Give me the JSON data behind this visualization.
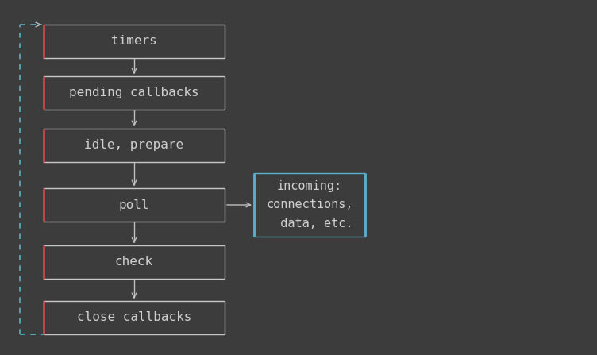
{
  "background_color": "#3c3c3c",
  "box_labels": [
    "timers",
    "pending callbacks",
    "idle, prepare",
    "poll",
    "check",
    "close callbacks"
  ],
  "box_edge_color": "#c8c8c8",
  "box_edge_color_left": "#cc4444",
  "box_facecolor": "#3c3c3c",
  "text_color": "#d0d0d0",
  "text_fontsize": 11.5,
  "font_family": "monospace",
  "arrow_color": "#c0c0c0",
  "side_box_label": "incoming:\nconnections,\n  data, etc.",
  "side_box_edge_color": "#5ab0cc",
  "loop_line_color": "#5ab0cc",
  "connector_color": "#c0c0c0"
}
